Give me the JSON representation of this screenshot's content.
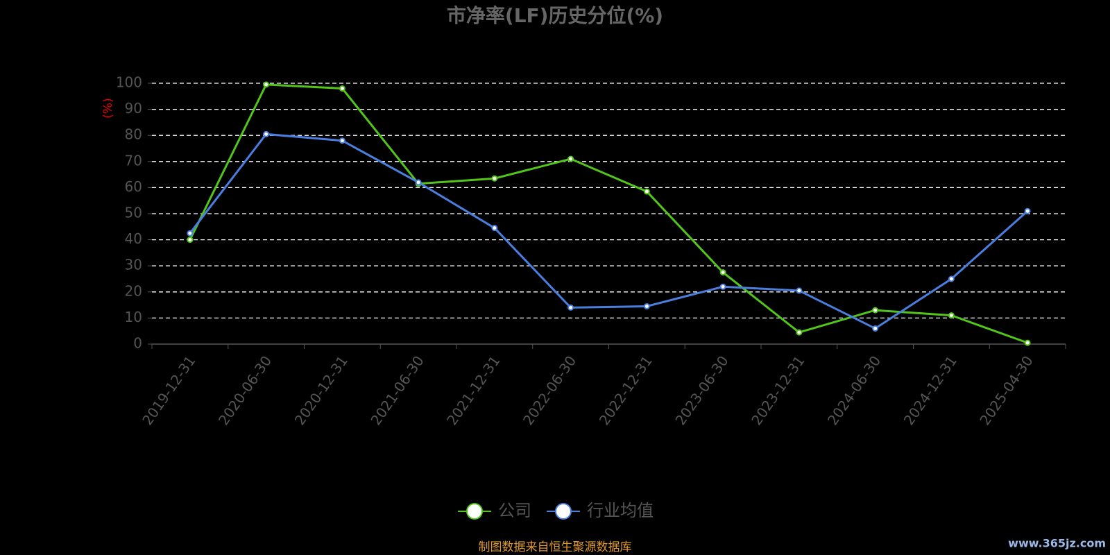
{
  "chart_data": {
    "type": "line",
    "title": "市净率(LF)历史分位(%)",
    "y_label": "(%)",
    "categories": [
      "2019-12-31",
      "2020-06-30",
      "2020-12-31",
      "2021-06-30",
      "2021-12-31",
      "2022-06-30",
      "2022-12-31",
      "2023-06-30",
      "2023-12-31",
      "2024-06-30",
      "2024-12-31",
      "2025-04-30"
    ],
    "series": [
      {
        "name": "公司",
        "color": "#52c41a",
        "values": [
          40,
          99.5,
          98,
          61.5,
          63.5,
          71,
          58.5,
          27.5,
          4.5,
          13,
          11,
          0.5
        ]
      },
      {
        "name": "行业均值",
        "color": "#4a7fe0",
        "values": [
          42.5,
          80.5,
          78,
          62,
          44.5,
          14,
          14.5,
          22,
          20.5,
          6,
          25,
          51
        ]
      }
    ],
    "ylim": [
      0,
      100
    ],
    "yticks": [
      0,
      10,
      20,
      30,
      40,
      50,
      60,
      70,
      80,
      90,
      100
    ],
    "grid": true,
    "legend": "bottom",
    "source": "制图数据来自恒生聚源数据库",
    "watermark": "www.365jz.com"
  }
}
